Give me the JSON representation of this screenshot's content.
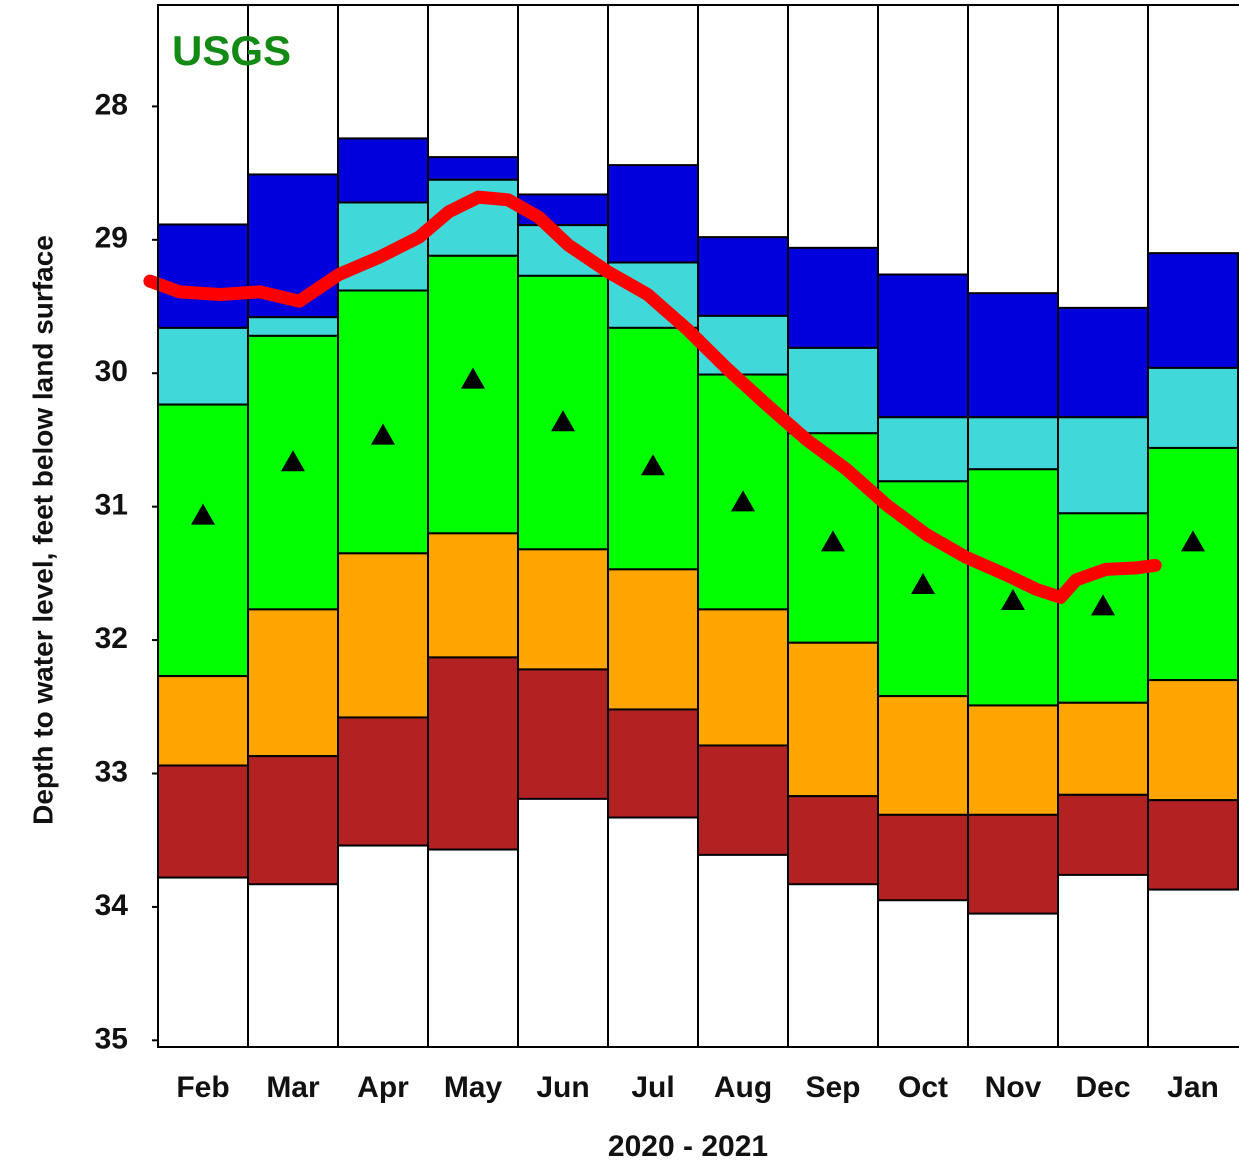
{
  "chart_data": {
    "type": "percentile_bands",
    "logo": "USGS",
    "xlabel": "2020 - 2021",
    "ylabel": "Depth to water level, feet below land surface",
    "categories": [
      "Feb",
      "Mar",
      "Apr",
      "May",
      "Jun",
      "Jul",
      "Aug",
      "Sep",
      "Oct",
      "Nov",
      "Dec",
      "Jan"
    ],
    "ylim": [
      27.24,
      35.05
    ],
    "y_inverted": true,
    "yticks": [
      28,
      29,
      30,
      31,
      32,
      33,
      34,
      35
    ],
    "xlim": [
      0,
      12
    ],
    "background": "#ffffff",
    "levels": [
      [
        28.885,
        28.51,
        28.24,
        28.38,
        28.66,
        28.44,
        28.98,
        29.06,
        29.26,
        29.4,
        29.51,
        29.1
      ],
      [
        29.66,
        29.58,
        28.72,
        28.55,
        28.89,
        29.17,
        29.57,
        29.81,
        30.33,
        30.33,
        30.33,
        29.96
      ],
      [
        30.235,
        29.72,
        29.38,
        29.12,
        29.27,
        29.66,
        30.01,
        30.45,
        30.81,
        30.72,
        31.05,
        30.56
      ],
      [
        32.27,
        31.77,
        31.35,
        31.2,
        31.32,
        31.47,
        31.77,
        32.02,
        32.42,
        32.49,
        32.47,
        32.3
      ],
      [
        32.94,
        32.87,
        32.58,
        32.13,
        32.22,
        32.52,
        32.79,
        33.17,
        33.31,
        33.31,
        33.16,
        33.2
      ],
      [
        33.78,
        33.83,
        33.54,
        33.57,
        33.19,
        33.33,
        33.61,
        33.83,
        33.95,
        34.05,
        33.76,
        33.87
      ]
    ],
    "band_colors": [
      "#0000dd",
      "#40d8d8",
      "#00ff00",
      "#ffa500",
      "#b22222"
    ],
    "median": {
      "color": "#000000",
      "values": [
        31.06,
        30.66,
        30.46,
        30.04,
        30.36,
        30.69,
        30.96,
        31.26,
        31.58,
        31.7,
        31.74,
        31.26
      ]
    },
    "line": {
      "color": "#ff0000",
      "x": [
        -0.09,
        0.24,
        0.69,
        1.13,
        1.57,
        2.01,
        2.46,
        2.9,
        3.23,
        3.56,
        3.89,
        4.23,
        4.56,
        5.0,
        5.44,
        5.88,
        6.33,
        6.77,
        7.21,
        7.65,
        8.1,
        8.54,
        8.98,
        9.42,
        9.76,
        10.03,
        10.2,
        10.53,
        10.86,
        11.08
      ],
      "values": [
        29.31,
        29.39,
        29.41,
        29.39,
        29.46,
        29.26,
        29.13,
        28.98,
        28.79,
        28.68,
        28.7,
        28.83,
        29.04,
        29.24,
        29.41,
        29.67,
        29.97,
        30.24,
        30.5,
        30.72,
        30.99,
        31.21,
        31.38,
        31.51,
        31.62,
        31.68,
        31.55,
        31.47,
        31.46,
        31.44
      ]
    }
  }
}
